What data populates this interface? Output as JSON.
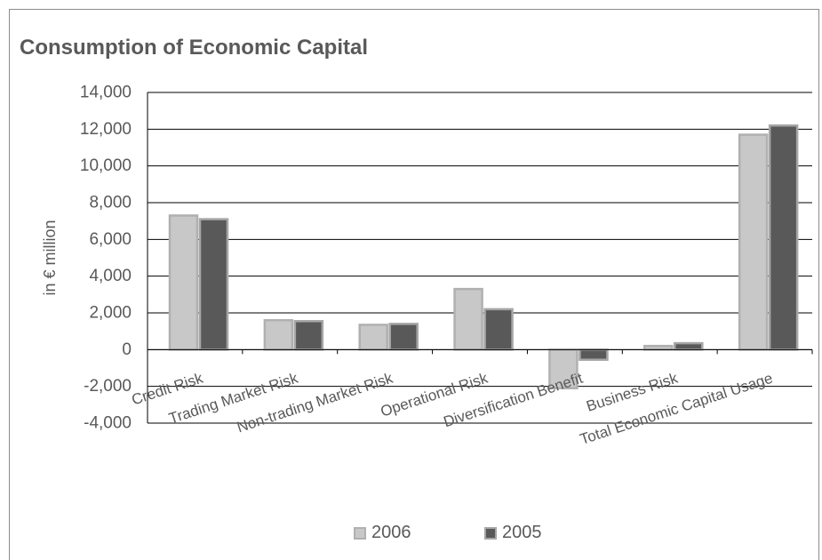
{
  "title": "Consumption of Economic Capital",
  "chart_data": {
    "type": "bar",
    "title": "Consumption of Economic Capital",
    "ylabel": "in € million",
    "xlabel": "",
    "categories": [
      "Credit Risk",
      "Trading Market Risk",
      "Non-trading Market Risk",
      "Operational Risk",
      "Diversification Benefit",
      "Business Risk",
      "Total Economic Capital Usage"
    ],
    "series": [
      {
        "name": "2006",
        "values": [
          7300,
          1600,
          1350,
          3300,
          -2100,
          200,
          11700
        ],
        "color": "#c8c8c8",
        "edge": "#b0b0b0"
      },
      {
        "name": "2005",
        "values": [
          7100,
          1550,
          1400,
          2200,
          -550,
          350,
          12200
        ],
        "color": "#595959",
        "edge": "#a6a6a6"
      }
    ],
    "ylim": [
      -4000,
      14000
    ],
    "yticks": [
      -4000,
      -2000,
      0,
      2000,
      4000,
      6000,
      8000,
      10000,
      12000,
      14000
    ],
    "ytick_labels": [
      "-4,000",
      "-2,000",
      "0",
      "2,000",
      "4,000",
      "6,000",
      "8,000",
      "10,000",
      "12,000",
      "14,000"
    ],
    "grid": true,
    "legend_position": "bottom-center"
  }
}
